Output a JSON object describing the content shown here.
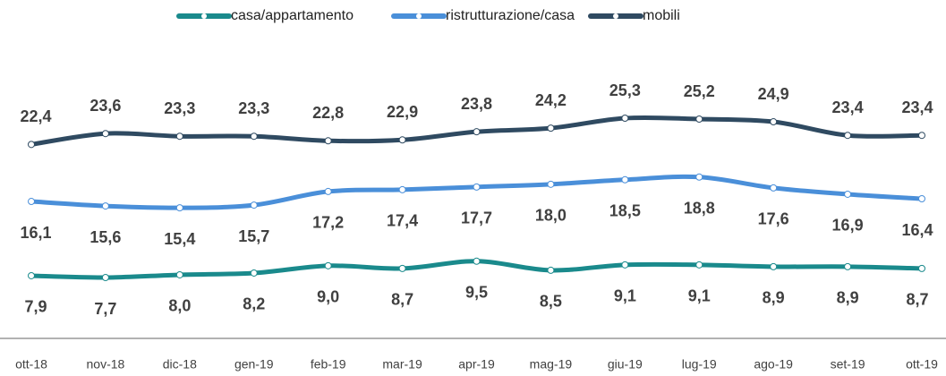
{
  "chart_data": {
    "type": "line",
    "categories": [
      "ott-18",
      "nov-18",
      "dic-18",
      "gen-19",
      "feb-19",
      "mar-19",
      "apr-19",
      "mag-19",
      "giu-19",
      "lug-19",
      "ago-19",
      "set-19",
      "ott-19"
    ],
    "series": [
      {
        "name": "casa/appartamento",
        "color": "#1a8a8c",
        "values": [
          7.9,
          7.7,
          8.0,
          8.2,
          9.0,
          8.7,
          9.5,
          8.5,
          9.1,
          9.1,
          8.9,
          8.9,
          8.7
        ],
        "value_labels": [
          "7,9",
          "7,7",
          "8,0",
          "8,2",
          "9,0",
          "8,7",
          "9,5",
          "8,5",
          "9,1",
          "9,1",
          "8,9",
          "8,9",
          "8,7"
        ]
      },
      {
        "name": "ristrutturazione/casa",
        "color": "#4a8fd9",
        "values": [
          16.1,
          15.6,
          15.4,
          15.7,
          17.2,
          17.4,
          17.7,
          18.0,
          18.5,
          18.8,
          17.6,
          16.9,
          16.4
        ],
        "value_labels": [
          "16,1",
          "15,6",
          "15,4",
          "15,7",
          "17,2",
          "17,4",
          "17,7",
          "18,0",
          "18,5",
          "18,8",
          "17,6",
          "16,9",
          "16,4"
        ]
      },
      {
        "name": "mobili",
        "color": "#2f4a61",
        "values": [
          22.4,
          23.6,
          23.3,
          23.3,
          22.8,
          22.9,
          23.8,
          24.2,
          25.3,
          25.2,
          24.9,
          23.4,
          23.4
        ],
        "value_labels": [
          "22,4",
          "23,6",
          "23,3",
          "23,3",
          "22,8",
          "22,9",
          "23,8",
          "24,2",
          "25,3",
          "25,2",
          "24,9",
          "23,4",
          "23,4"
        ]
      }
    ]
  }
}
